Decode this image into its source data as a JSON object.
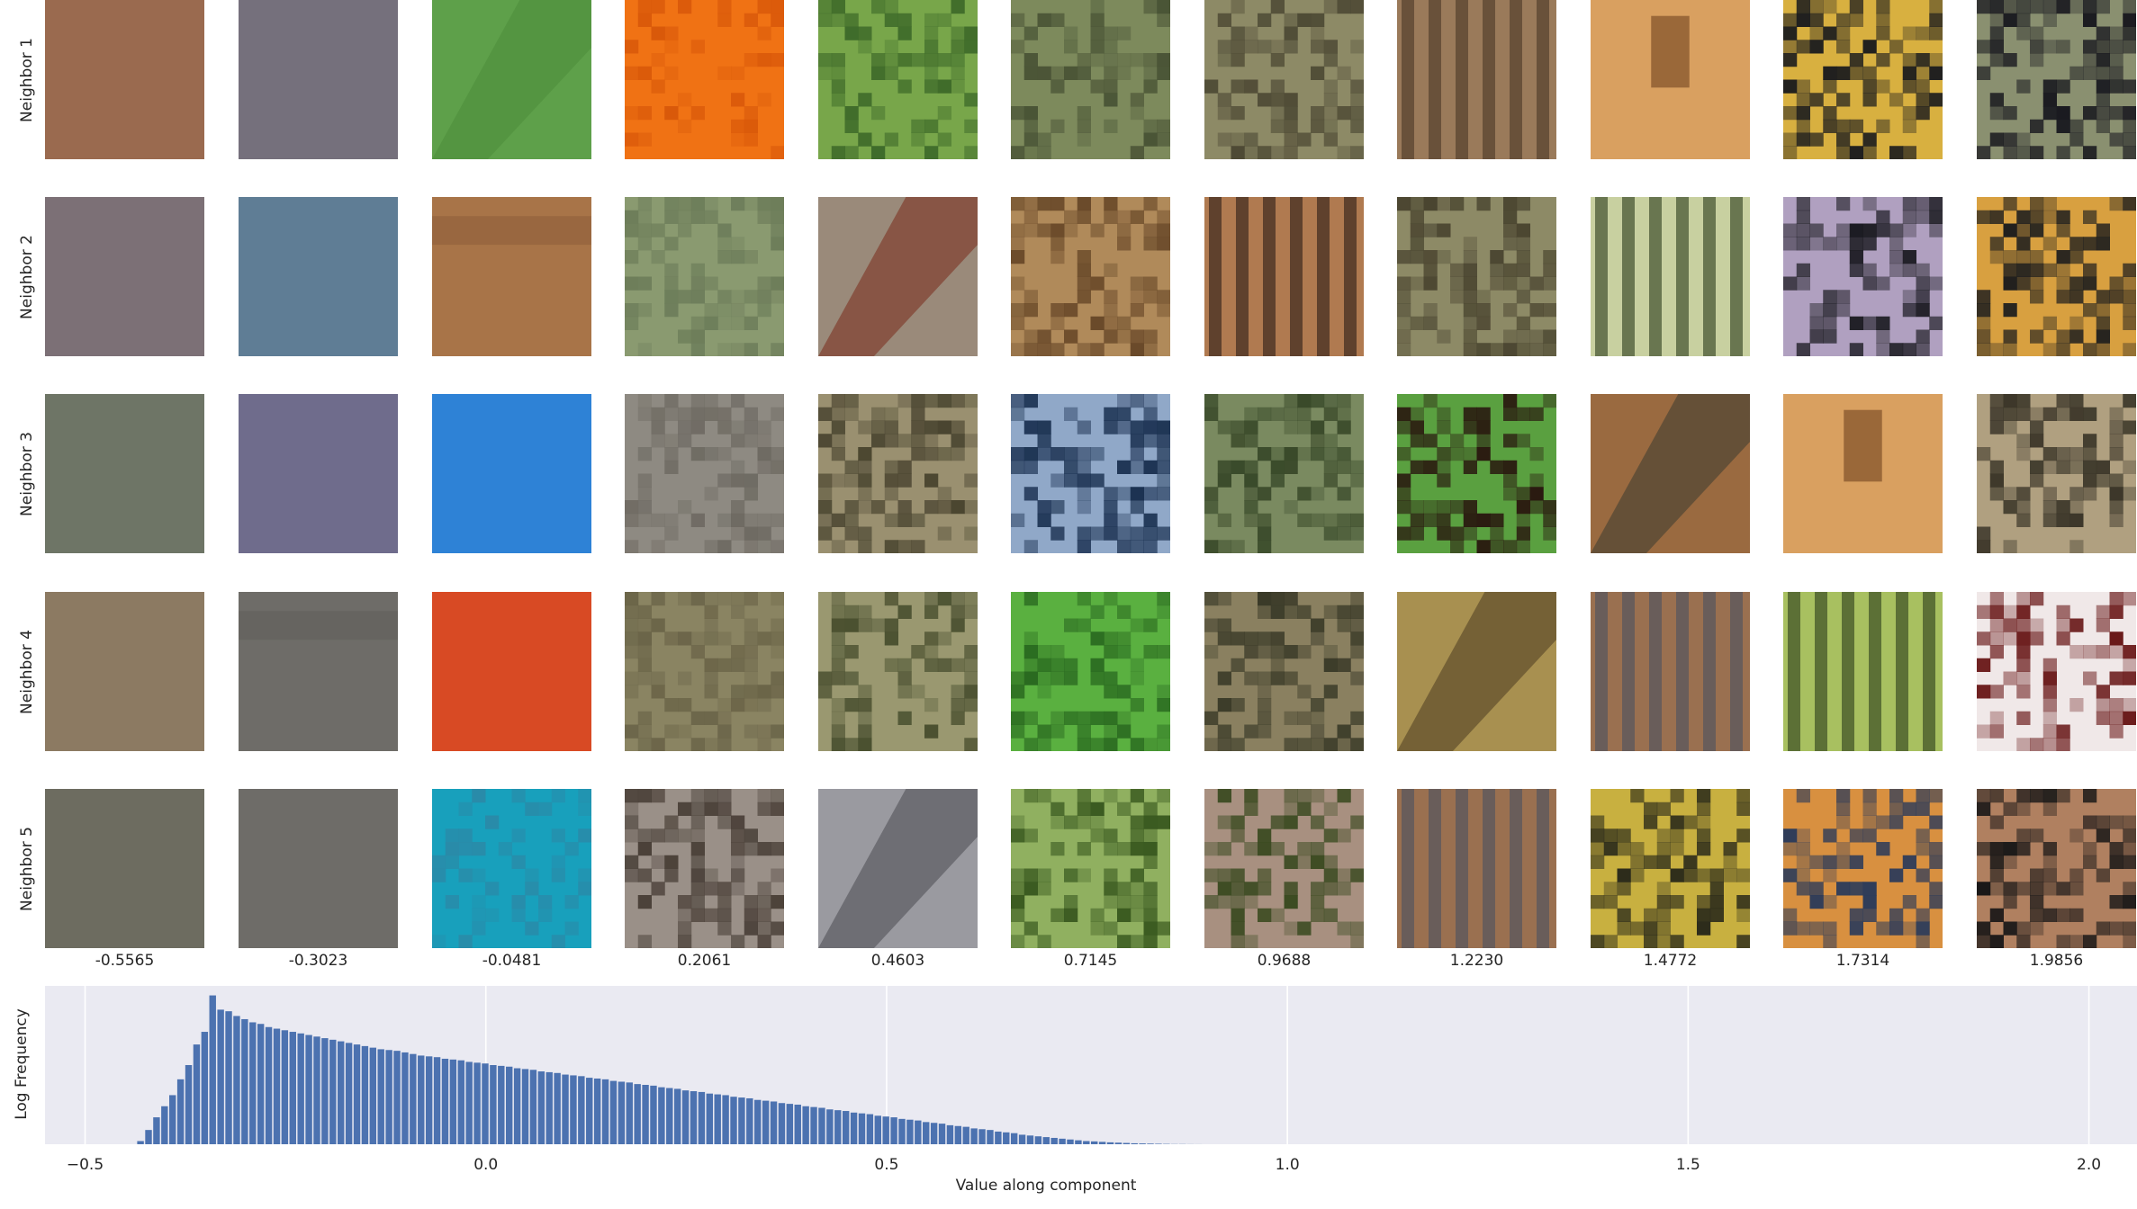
{
  "rows": [
    {
      "label": "Neighbor 1",
      "tiles": [
        {
          "c1": "#9a6a4f",
          "c2": "#946648",
          "pattern": "flat"
        },
        {
          "c1": "#75707c",
          "c2": "#6e6a78",
          "pattern": "flat"
        },
        {
          "c1": "#5ea04a",
          "c2": "#4d8c3b",
          "pattern": "diag"
        },
        {
          "c1": "#f07214",
          "c2": "#d9590a",
          "pattern": "blocks"
        },
        {
          "c1": "#78a64a",
          "c2": "#3f6b2a",
          "pattern": "noise"
        },
        {
          "c1": "#7d8a5c",
          "c2": "#4a5436",
          "pattern": "noise"
        },
        {
          "c1": "#8d8a66",
          "c2": "#4e4a35",
          "pattern": "noise"
        },
        {
          "c1": "#9a7a5a",
          "c2": "#4a3525",
          "pattern": "stripes"
        },
        {
          "c1": "#d9a060",
          "c2": "#4a4a55",
          "pattern": "blob"
        },
        {
          "c1": "#d8b040",
          "c2": "#1e1e1e",
          "pattern": "noise"
        },
        {
          "c1": "#8a9070",
          "c2": "#1a1a20",
          "pattern": "noise"
        }
      ]
    },
    {
      "label": "Neighbor 2",
      "tiles": [
        {
          "c1": "#7c7076",
          "c2": "#766a70",
          "pattern": "flat"
        },
        {
          "c1": "#5f7d95",
          "c2": "#57748d",
          "pattern": "flat"
        },
        {
          "c1": "#a87448",
          "c2": "#8a5a38",
          "pattern": "band"
        },
        {
          "c1": "#8a9a70",
          "c2": "#6d7d5a",
          "pattern": "noise"
        },
        {
          "c1": "#9a8a7a",
          "c2": "#7a2a1a",
          "pattern": "diag"
        },
        {
          "c1": "#b08a5a",
          "c2": "#6a4a2a",
          "pattern": "noise"
        },
        {
          "c1": "#b07a50",
          "c2": "#2a1a15",
          "pattern": "stripes"
        },
        {
          "c1": "#8d8a66",
          "c2": "#4a4530",
          "pattern": "noise"
        },
        {
          "c1": "#c8d0a0",
          "c2": "#2a3a1a",
          "pattern": "stripes"
        },
        {
          "c1": "#b0a0c0",
          "c2": "#1a1a20",
          "pattern": "noise"
        },
        {
          "c1": "#d8a040",
          "c2": "#1e1e1e",
          "pattern": "noise"
        }
      ]
    },
    {
      "label": "Neighbor 3",
      "tiles": [
        {
          "c1": "#6e7566",
          "c2": "#677061",
          "pattern": "flat"
        },
        {
          "c1": "#6f6c8c",
          "c2": "#686584",
          "pattern": "flat"
        },
        {
          "c1": "#2e82d6",
          "c2": "#2274c8",
          "pattern": "flat"
        },
        {
          "c1": "#8e8a82",
          "c2": "#6e6a62",
          "pattern": "noise"
        },
        {
          "c1": "#9a9070",
          "c2": "#4a4530",
          "pattern": "noise"
        },
        {
          "c1": "#90a8c8",
          "c2": "#1a3050",
          "pattern": "noise"
        },
        {
          "c1": "#7a8a60",
          "c2": "#3a4a2a",
          "pattern": "noise"
        },
        {
          "c1": "#5aa040",
          "c2": "#2a1a10",
          "pattern": "noise"
        },
        {
          "c1": "#9a6a40",
          "c2": "#3a3a30",
          "pattern": "diag"
        },
        {
          "c1": "#d9a060",
          "c2": "#4a4a55",
          "pattern": "blob"
        },
        {
          "c1": "#b0a080",
          "c2": "#3a3528",
          "pattern": "noise"
        }
      ]
    },
    {
      "label": "Neighbor 4",
      "tiles": [
        {
          "c1": "#8c7a62",
          "c2": "#84725c",
          "pattern": "flat"
        },
        {
          "c1": "#6e6c68",
          "c2": "#5e5c58",
          "pattern": "band"
        },
        {
          "c1": "#d84a24",
          "c2": "#cc4020",
          "pattern": "flat"
        },
        {
          "c1": "#8a8462",
          "c2": "#6a6448",
          "pattern": "noise"
        },
        {
          "c1": "#9a9870",
          "c2": "#4a5030",
          "pattern": "noise"
        },
        {
          "c1": "#5ab040",
          "c2": "#2a6a20",
          "pattern": "noise"
        },
        {
          "c1": "#8a8060",
          "c2": "#3a3a28",
          "pattern": "noise"
        },
        {
          "c1": "#a89050",
          "c2": "#4a3a20",
          "pattern": "diag"
        },
        {
          "c1": "#9a7050",
          "c2": "#4a5060",
          "pattern": "stripes"
        },
        {
          "c1": "#a8c060",
          "c2": "#2a3a1a",
          "pattern": "stripes"
        },
        {
          "c1": "#f0e8e8",
          "c2": "#6a1a1a",
          "pattern": "noise"
        }
      ]
    },
    {
      "label": "Neighbor 5",
      "tiles": [
        {
          "c1": "#6d6c60",
          "c2": "#66655a",
          "pattern": "flat"
        },
        {
          "c1": "#6e6c68",
          "c2": "#62605c",
          "pattern": "flat"
        },
        {
          "c1": "#18a0bc",
          "c2": "#2a8aa8",
          "pattern": "blocks"
        },
        {
          "c1": "#9a9088",
          "c2": "#4a4038",
          "pattern": "noise"
        },
        {
          "c1": "#9a9aa0",
          "c2": "#4a4a50",
          "pattern": "diag"
        },
        {
          "c1": "#90b060",
          "c2": "#3a5a20",
          "pattern": "noise"
        },
        {
          "c1": "#a89080",
          "c2": "#3a4a20",
          "pattern": "noise"
        },
        {
          "c1": "#9a7050",
          "c2": "#4a5060",
          "pattern": "stripes"
        },
        {
          "c1": "#c8b040",
          "c2": "#2a2a1a",
          "pattern": "noise"
        },
        {
          "c1": "#d89040",
          "c2": "#2a3a5a",
          "pattern": "noise"
        },
        {
          "c1": "#b08060",
          "c2": "#1a1818",
          "pattern": "noise"
        }
      ]
    }
  ],
  "column_values": [
    "-0.5565",
    "-0.3023",
    "-0.0481",
    "0.2061",
    "0.4603",
    "0.7145",
    "0.9688",
    "1.2230",
    "1.4772",
    "1.7314",
    "1.9856"
  ],
  "chart_data": {
    "type": "bar",
    "xlabel": "Value along component",
    "ylabel": "Log Frequency",
    "xlim": [
      -0.55,
      2.06
    ],
    "xticks": [
      -0.5,
      0.0,
      0.5,
      1.0,
      1.5,
      2.0
    ],
    "xtick_labels": [
      "−0.5",
      "0.0",
      "0.5",
      "1.0",
      "1.5",
      "2.0"
    ],
    "grid": true,
    "background": "#eaeaf2",
    "bar_color": "#4c72b0",
    "bin_start": -0.435,
    "bin_width": 0.01,
    "ylim": [
      0,
      1.0
    ],
    "values": [
      0.02,
      0.09,
      0.17,
      0.24,
      0.31,
      0.41,
      0.5,
      0.63,
      0.71,
      0.94,
      0.85,
      0.84,
      0.81,
      0.79,
      0.77,
      0.76,
      0.74,
      0.73,
      0.72,
      0.71,
      0.7,
      0.69,
      0.68,
      0.67,
      0.66,
      0.65,
      0.64,
      0.63,
      0.62,
      0.61,
      0.6,
      0.595,
      0.59,
      0.58,
      0.57,
      0.56,
      0.555,
      0.55,
      0.54,
      0.535,
      0.53,
      0.52,
      0.515,
      0.51,
      0.5,
      0.495,
      0.49,
      0.48,
      0.475,
      0.47,
      0.46,
      0.455,
      0.45,
      0.44,
      0.435,
      0.43,
      0.42,
      0.415,
      0.41,
      0.4,
      0.395,
      0.39,
      0.38,
      0.375,
      0.37,
      0.36,
      0.355,
      0.35,
      0.34,
      0.335,
      0.33,
      0.32,
      0.315,
      0.31,
      0.3,
      0.295,
      0.29,
      0.28,
      0.275,
      0.27,
      0.26,
      0.255,
      0.25,
      0.24,
      0.235,
      0.23,
      0.22,
      0.215,
      0.21,
      0.2,
      0.195,
      0.19,
      0.18,
      0.175,
      0.17,
      0.16,
      0.155,
      0.15,
      0.14,
      0.135,
      0.13,
      0.12,
      0.115,
      0.11,
      0.1,
      0.095,
      0.09,
      0.08,
      0.075,
      0.07,
      0.06,
      0.055,
      0.05,
      0.045,
      0.04,
      0.035,
      0.03,
      0.025,
      0.02,
      0.018,
      0.015,
      0.012,
      0.01,
      0.008,
      0.006,
      0.005,
      0.004,
      0.003,
      0.002,
      0.001,
      0.001,
      0.0005,
      0.0003
    ]
  }
}
